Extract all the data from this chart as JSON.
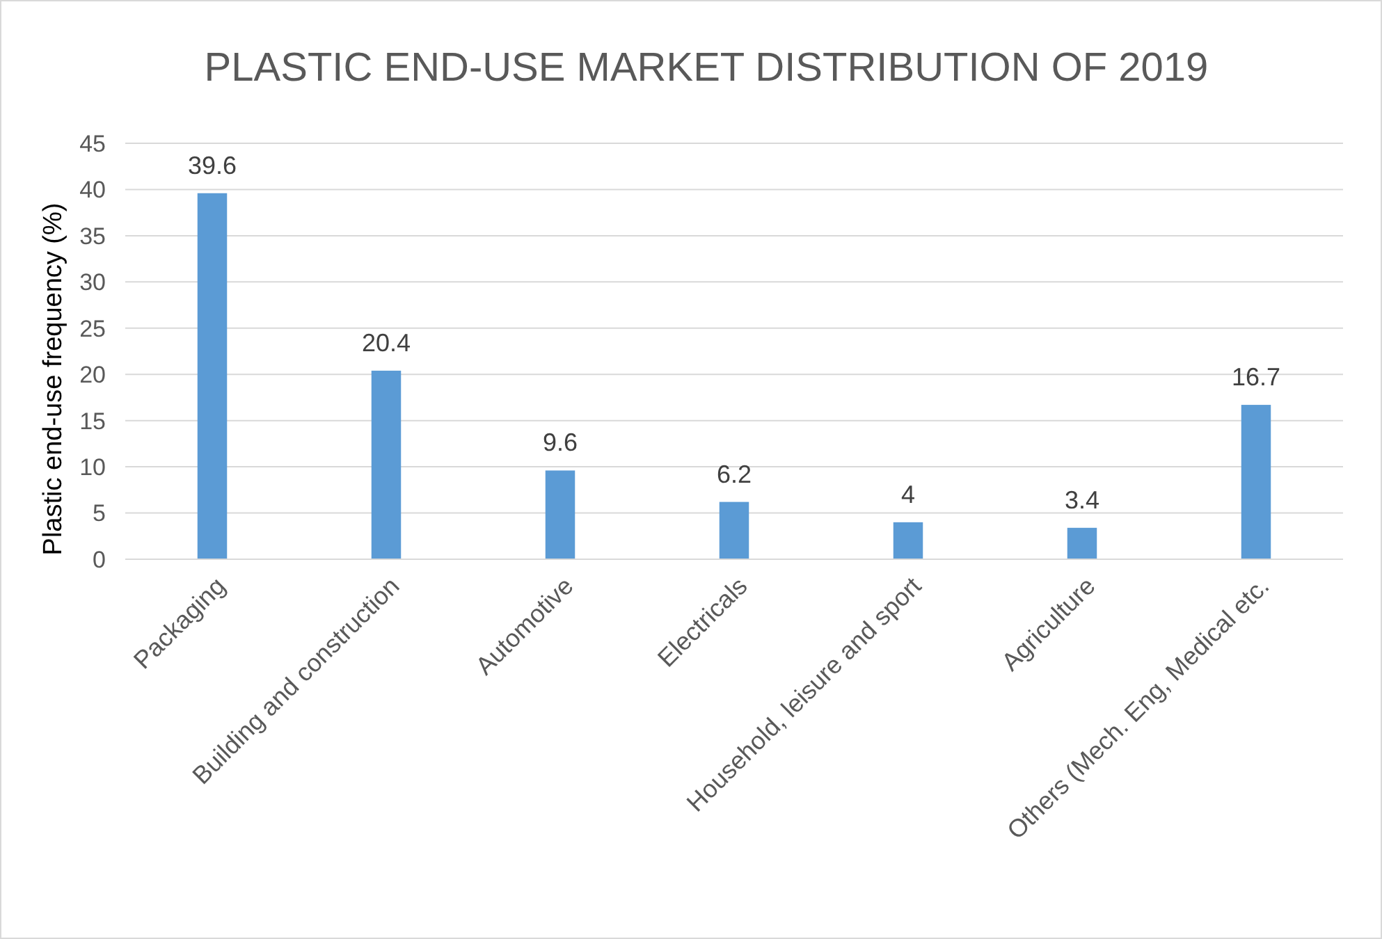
{
  "chart_data": {
    "type": "bar",
    "title": "PLASTIC END-USE MARKET DISTRIBUTION OF 2019",
    "ylabel": "Plastic end-use frequency (%)",
    "categories": [
      "Packaging",
      "Building and construction",
      "Automotive",
      "Electricals",
      "Household, leisure and sport",
      "Agriculture",
      "Others (Mech. Eng, Medical etc."
    ],
    "values": [
      39.6,
      20.4,
      9.6,
      6.2,
      4,
      3.4,
      16.7
    ],
    "color": "#5b9bd5",
    "ylim": [
      0,
      45
    ],
    "yticks": [
      0,
      5,
      10,
      15,
      20,
      25,
      30,
      35,
      40,
      45
    ],
    "grid": "y",
    "data_labels": true
  }
}
